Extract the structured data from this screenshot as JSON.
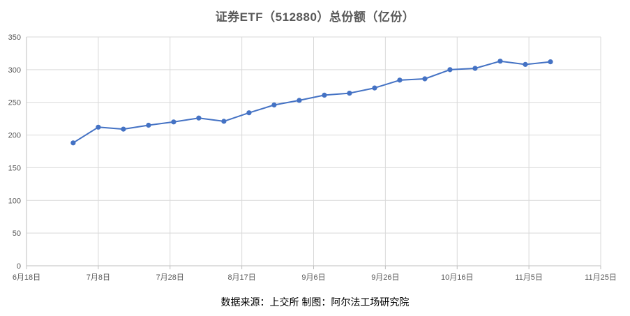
{
  "chart_data": {
    "type": "line",
    "title": "证券ETF（512880）总份额（亿份）",
    "xlabel": "",
    "ylabel": "",
    "x_ticks": [
      "6月18日",
      "7月8日",
      "7月28日",
      "8月17日",
      "9月6日",
      "9月26日",
      "10月16日",
      "11月5日",
      "11月25日"
    ],
    "xlim": [
      "2023-06-18",
      "2023-11-25"
    ],
    "ylim": [
      0,
      350
    ],
    "y_ticks": [
      0,
      50,
      100,
      150,
      200,
      250,
      300,
      350
    ],
    "y_tick_labels": [
      "0",
      "50",
      "100",
      "150",
      "200",
      "250",
      "300",
      "350"
    ],
    "grid": true,
    "legend": "none",
    "series": [
      {
        "color": "#4472C4",
        "x": [
          "2023-07-01",
          "2023-07-08",
          "2023-07-15",
          "2023-07-22",
          "2023-07-29",
          "2023-08-05",
          "2023-08-12",
          "2023-08-19",
          "2023-08-26",
          "2023-09-02",
          "2023-09-09",
          "2023-09-16",
          "2023-09-23",
          "2023-09-30",
          "2023-10-07",
          "2023-10-14",
          "2023-10-21",
          "2023-10-28",
          "2023-11-04",
          "2023-11-11"
        ],
        "values": [
          188,
          212,
          209,
          215,
          220,
          226,
          221,
          234,
          246,
          253,
          261,
          264,
          272,
          284,
          286,
          300,
          302,
          313,
          308,
          312
        ]
      }
    ]
  },
  "footer": {
    "source": "数据来源：上交所  制图：阿尔法工场研究院"
  }
}
